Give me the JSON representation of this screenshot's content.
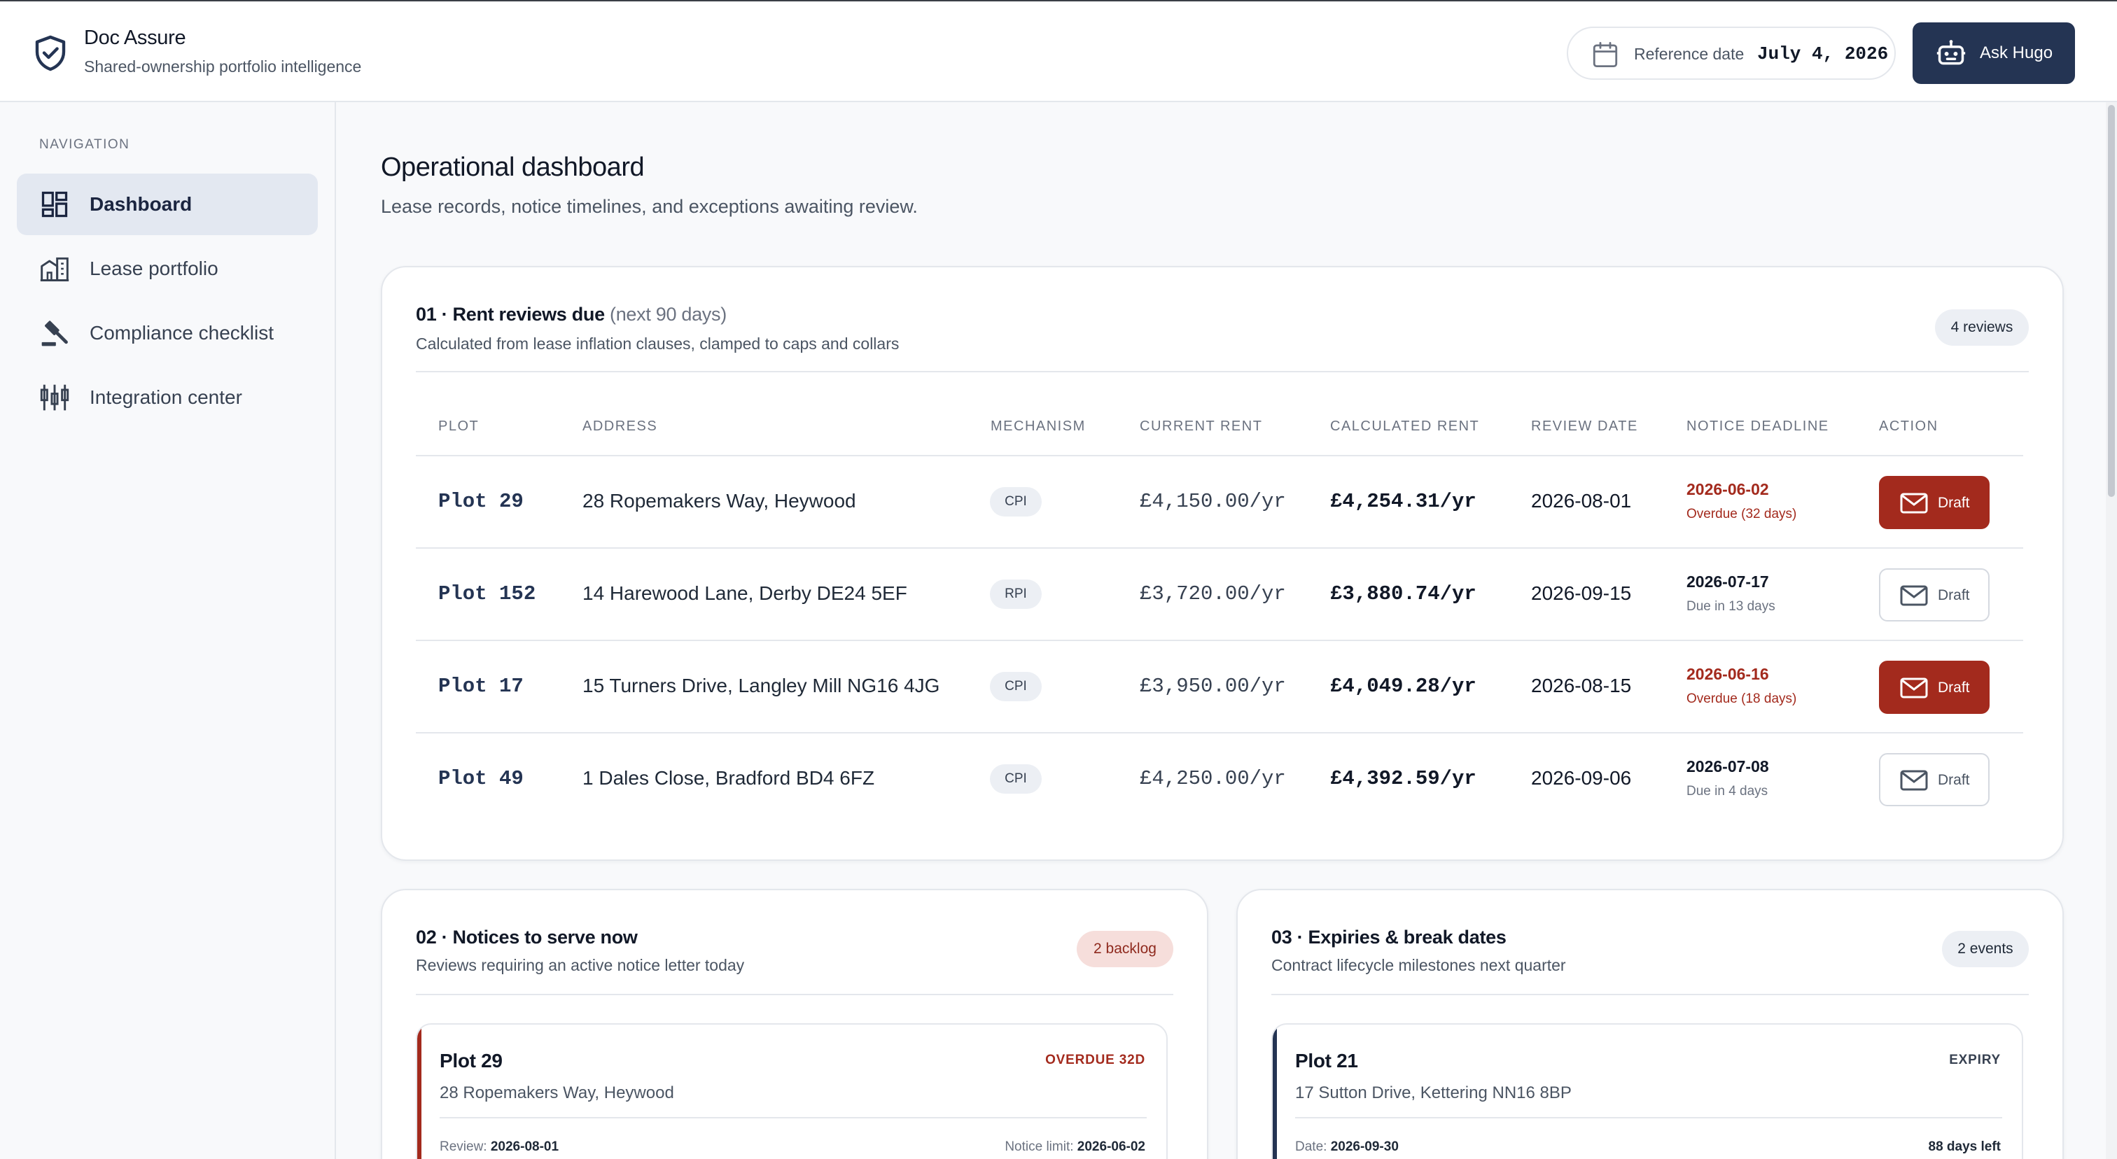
{
  "header": {
    "app_name": "Doc Assure",
    "app_tagline": "Shared-ownership portfolio intelligence",
    "reference_date_label": "Reference date",
    "reference_date_value": "July 4, 2026",
    "ask_button": "Ask Hugo"
  },
  "sidebar": {
    "section_title": "NAVIGATION",
    "items": [
      {
        "label": "Dashboard",
        "icon": "dashboard-icon",
        "active": true
      },
      {
        "label": "Lease portfolio",
        "icon": "building-icon",
        "active": false
      },
      {
        "label": "Compliance checklist",
        "icon": "gavel-icon",
        "active": false
      },
      {
        "label": "Integration center",
        "icon": "integration-icon",
        "active": false
      }
    ]
  },
  "main": {
    "title": "Operational dashboard",
    "subtitle": "Lease records, notice timelines, and exceptions awaiting review."
  },
  "rent_reviews": {
    "title": "01 · Rent reviews due",
    "title_suffix": "(next 90 days)",
    "subtitle": "Calculated from lease inflation clauses, clamped to caps and collars",
    "count_badge": "4 reviews",
    "columns": [
      "PLOT",
      "ADDRESS",
      "MECHANISM",
      "CURRENT RENT",
      "CALCULATED RENT",
      "REVIEW DATE",
      "NOTICE DEADLINE",
      "ACTION"
    ],
    "rows": [
      {
        "plot": "Plot 29",
        "address": "28 Ropemakers Way, Heywood",
        "mechanism": "CPI",
        "current_rent": "£4,150.00/yr",
        "calculated_rent": "£4,254.31/yr",
        "review_date": "2026-08-01",
        "notice_deadline": "2026-06-02",
        "notice_status": "Overdue (32 days)",
        "overdue": true,
        "action": "Draft"
      },
      {
        "plot": "Plot 152",
        "address": "14 Harewood Lane, Derby DE24 5EF",
        "mechanism": "RPI",
        "current_rent": "£3,720.00/yr",
        "calculated_rent": "£3,880.74/yr",
        "review_date": "2026-09-15",
        "notice_deadline": "2026-07-17",
        "notice_status": "Due in 13 days",
        "overdue": false,
        "action": "Draft"
      },
      {
        "plot": "Plot 17",
        "address": "15 Turners Drive, Langley Mill NG16 4JG",
        "mechanism": "CPI",
        "current_rent": "£3,950.00/yr",
        "calculated_rent": "£4,049.28/yr",
        "review_date": "2026-08-15",
        "notice_deadline": "2026-06-16",
        "notice_status": "Overdue (18 days)",
        "overdue": true,
        "action": "Draft"
      },
      {
        "plot": "Plot 49",
        "address": "1 Dales Close, Bradford BD4 6FZ",
        "mechanism": "CPI",
        "current_rent": "£4,250.00/yr",
        "calculated_rent": "£4,392.59/yr",
        "review_date": "2026-09-06",
        "notice_deadline": "2026-07-08",
        "notice_status": "Due in 4 days",
        "overdue": false,
        "action": "Draft"
      }
    ]
  },
  "notices": {
    "title": "02 · Notices to serve now",
    "subtitle": "Reviews requiring an active notice letter today",
    "badge": "2 backlog",
    "items": [
      {
        "plot": "Plot 29",
        "tag": "OVERDUE 32D",
        "address": "28 Ropemakers Way, Heywood",
        "left_label": "Review:",
        "left_value": "2026-08-01",
        "right_label": "Notice limit:",
        "right_value": "2026-06-02"
      }
    ]
  },
  "expiries": {
    "title": "03 · Expiries & break dates",
    "subtitle": "Contract lifecycle milestones next quarter",
    "badge": "2 events",
    "items": [
      {
        "plot": "Plot 21",
        "tag": "EXPIRY",
        "address": "17 Sutton Drive, Kettering NN16 8BP",
        "left_label": "Date:",
        "left_value": "2026-09-30",
        "right_value": "88 days left"
      }
    ]
  },
  "colors": {
    "brand_navy": "#243453",
    "overdue_red": "#a32a1d",
    "active_nav": "#e3e8f1"
  }
}
